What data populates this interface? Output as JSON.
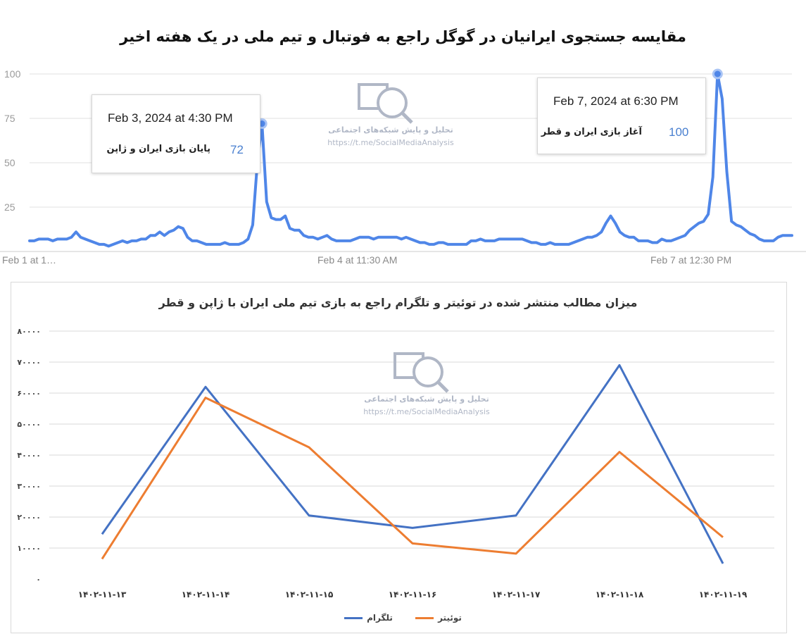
{
  "colors": {
    "trend_line": "#4f86e8",
    "telegram": "#4472c4",
    "twitter": "#ed7d31",
    "grid": "#e0e0e0",
    "tooltip_value": "#4a80d0",
    "watermark": "#b0b7c6"
  },
  "watermark": {
    "text_fa": "تحلیل و پایش شبکه‌های اجتماعی",
    "url": "https://t.me/SocialMediaAnalysis",
    "icon": "magnifier-chart-icon"
  },
  "chart_data": [
    {
      "type": "line",
      "title": "مقایسه جستجوی ایرانیان در گوگل راجع به فوتبال و تیم ملی در یک هفته اخیر",
      "ylim": [
        0,
        100
      ],
      "yticks": [
        "100",
        "75",
        "50",
        "25"
      ],
      "xtick_labels": [
        "Feb 1 at 1…",
        "Feb 4 at 11:30 AM",
        "Feb 7 at 12:30 PM"
      ],
      "grid": true,
      "series": [
        {
          "values": [
            6,
            6,
            7,
            7,
            7,
            6,
            7,
            7,
            7,
            8,
            11,
            8,
            7,
            6,
            5,
            4,
            4,
            3,
            4,
            5,
            6,
            5,
            6,
            6,
            7,
            7,
            9,
            9,
            11,
            9,
            11,
            12,
            14,
            13,
            8,
            6,
            6,
            5,
            4,
            4,
            4,
            4,
            5,
            4,
            4,
            4,
            5,
            7,
            15,
            50,
            72,
            28,
            19,
            18,
            18,
            20,
            13,
            12,
            12,
            9,
            8,
            8,
            7,
            8,
            9,
            7,
            6,
            6,
            6,
            6,
            7,
            8,
            8,
            8,
            7,
            8,
            8,
            8,
            8,
            8,
            7,
            8,
            7,
            6,
            5,
            5,
            4,
            4,
            5,
            5,
            4,
            4,
            4,
            4,
            4,
            6,
            6,
            7,
            6,
            6,
            6,
            7,
            7,
            7,
            7,
            7,
            7,
            6,
            5,
            5,
            4,
            4,
            5,
            4,
            4,
            4,
            4,
            5,
            6,
            7,
            8,
            8,
            9,
            11,
            16,
            20,
            16,
            11,
            9,
            8,
            8,
            6,
            6,
            6,
            5,
            5,
            7,
            6,
            6,
            7,
            8,
            9,
            12,
            14,
            16,
            17,
            21,
            42,
            100,
            86,
            45,
            17,
            15,
            14,
            12,
            10,
            9,
            7,
            6,
            6,
            6,
            8,
            9,
            9,
            9
          ]
        }
      ],
      "tooltips": [
        {
          "date": "Feb 3, 2024 at 4:30 PM",
          "label": "پایان بازی ایران و ژاپن",
          "value": "72"
        },
        {
          "date": "Feb 7, 2024 at 6:30 PM",
          "label": "آغاز بازی ایران و قطر",
          "value": "100"
        }
      ]
    },
    {
      "type": "line",
      "title": "میزان مطالب منتشر شده در توئیتر و تلگرام راجع به بازی تیم ملی ایران با ژاپن و قطر",
      "categories": [
        "۱۴۰۲-۱۱-۱۳",
        "۱۴۰۲-۱۱-۱۴",
        "۱۴۰۲-۱۱-۱۵",
        "۱۴۰۲-۱۱-۱۶",
        "۱۴۰۲-۱۱-۱۷",
        "۱۴۰۲-۱۱-۱۸",
        "۱۴۰۲-۱۱-۱۹"
      ],
      "ylim": [
        0,
        80000
      ],
      "yticks": [
        "۰",
        "۱۰۰۰۰",
        "۲۰۰۰۰",
        "۳۰۰۰۰",
        "۴۰۰۰۰",
        "۵۰۰۰۰",
        "۶۰۰۰۰",
        "۷۰۰۰۰",
        "۸۰۰۰۰"
      ],
      "grid": true,
      "legend": "bottom",
      "series": [
        {
          "name": "تلگرام",
          "values": [
            14500,
            62000,
            20500,
            16500,
            20500,
            69000,
            5000
          ]
        },
        {
          "name": "توئیتر",
          "values": [
            6500,
            58500,
            42500,
            11500,
            8200,
            41000,
            13500
          ]
        }
      ]
    }
  ]
}
